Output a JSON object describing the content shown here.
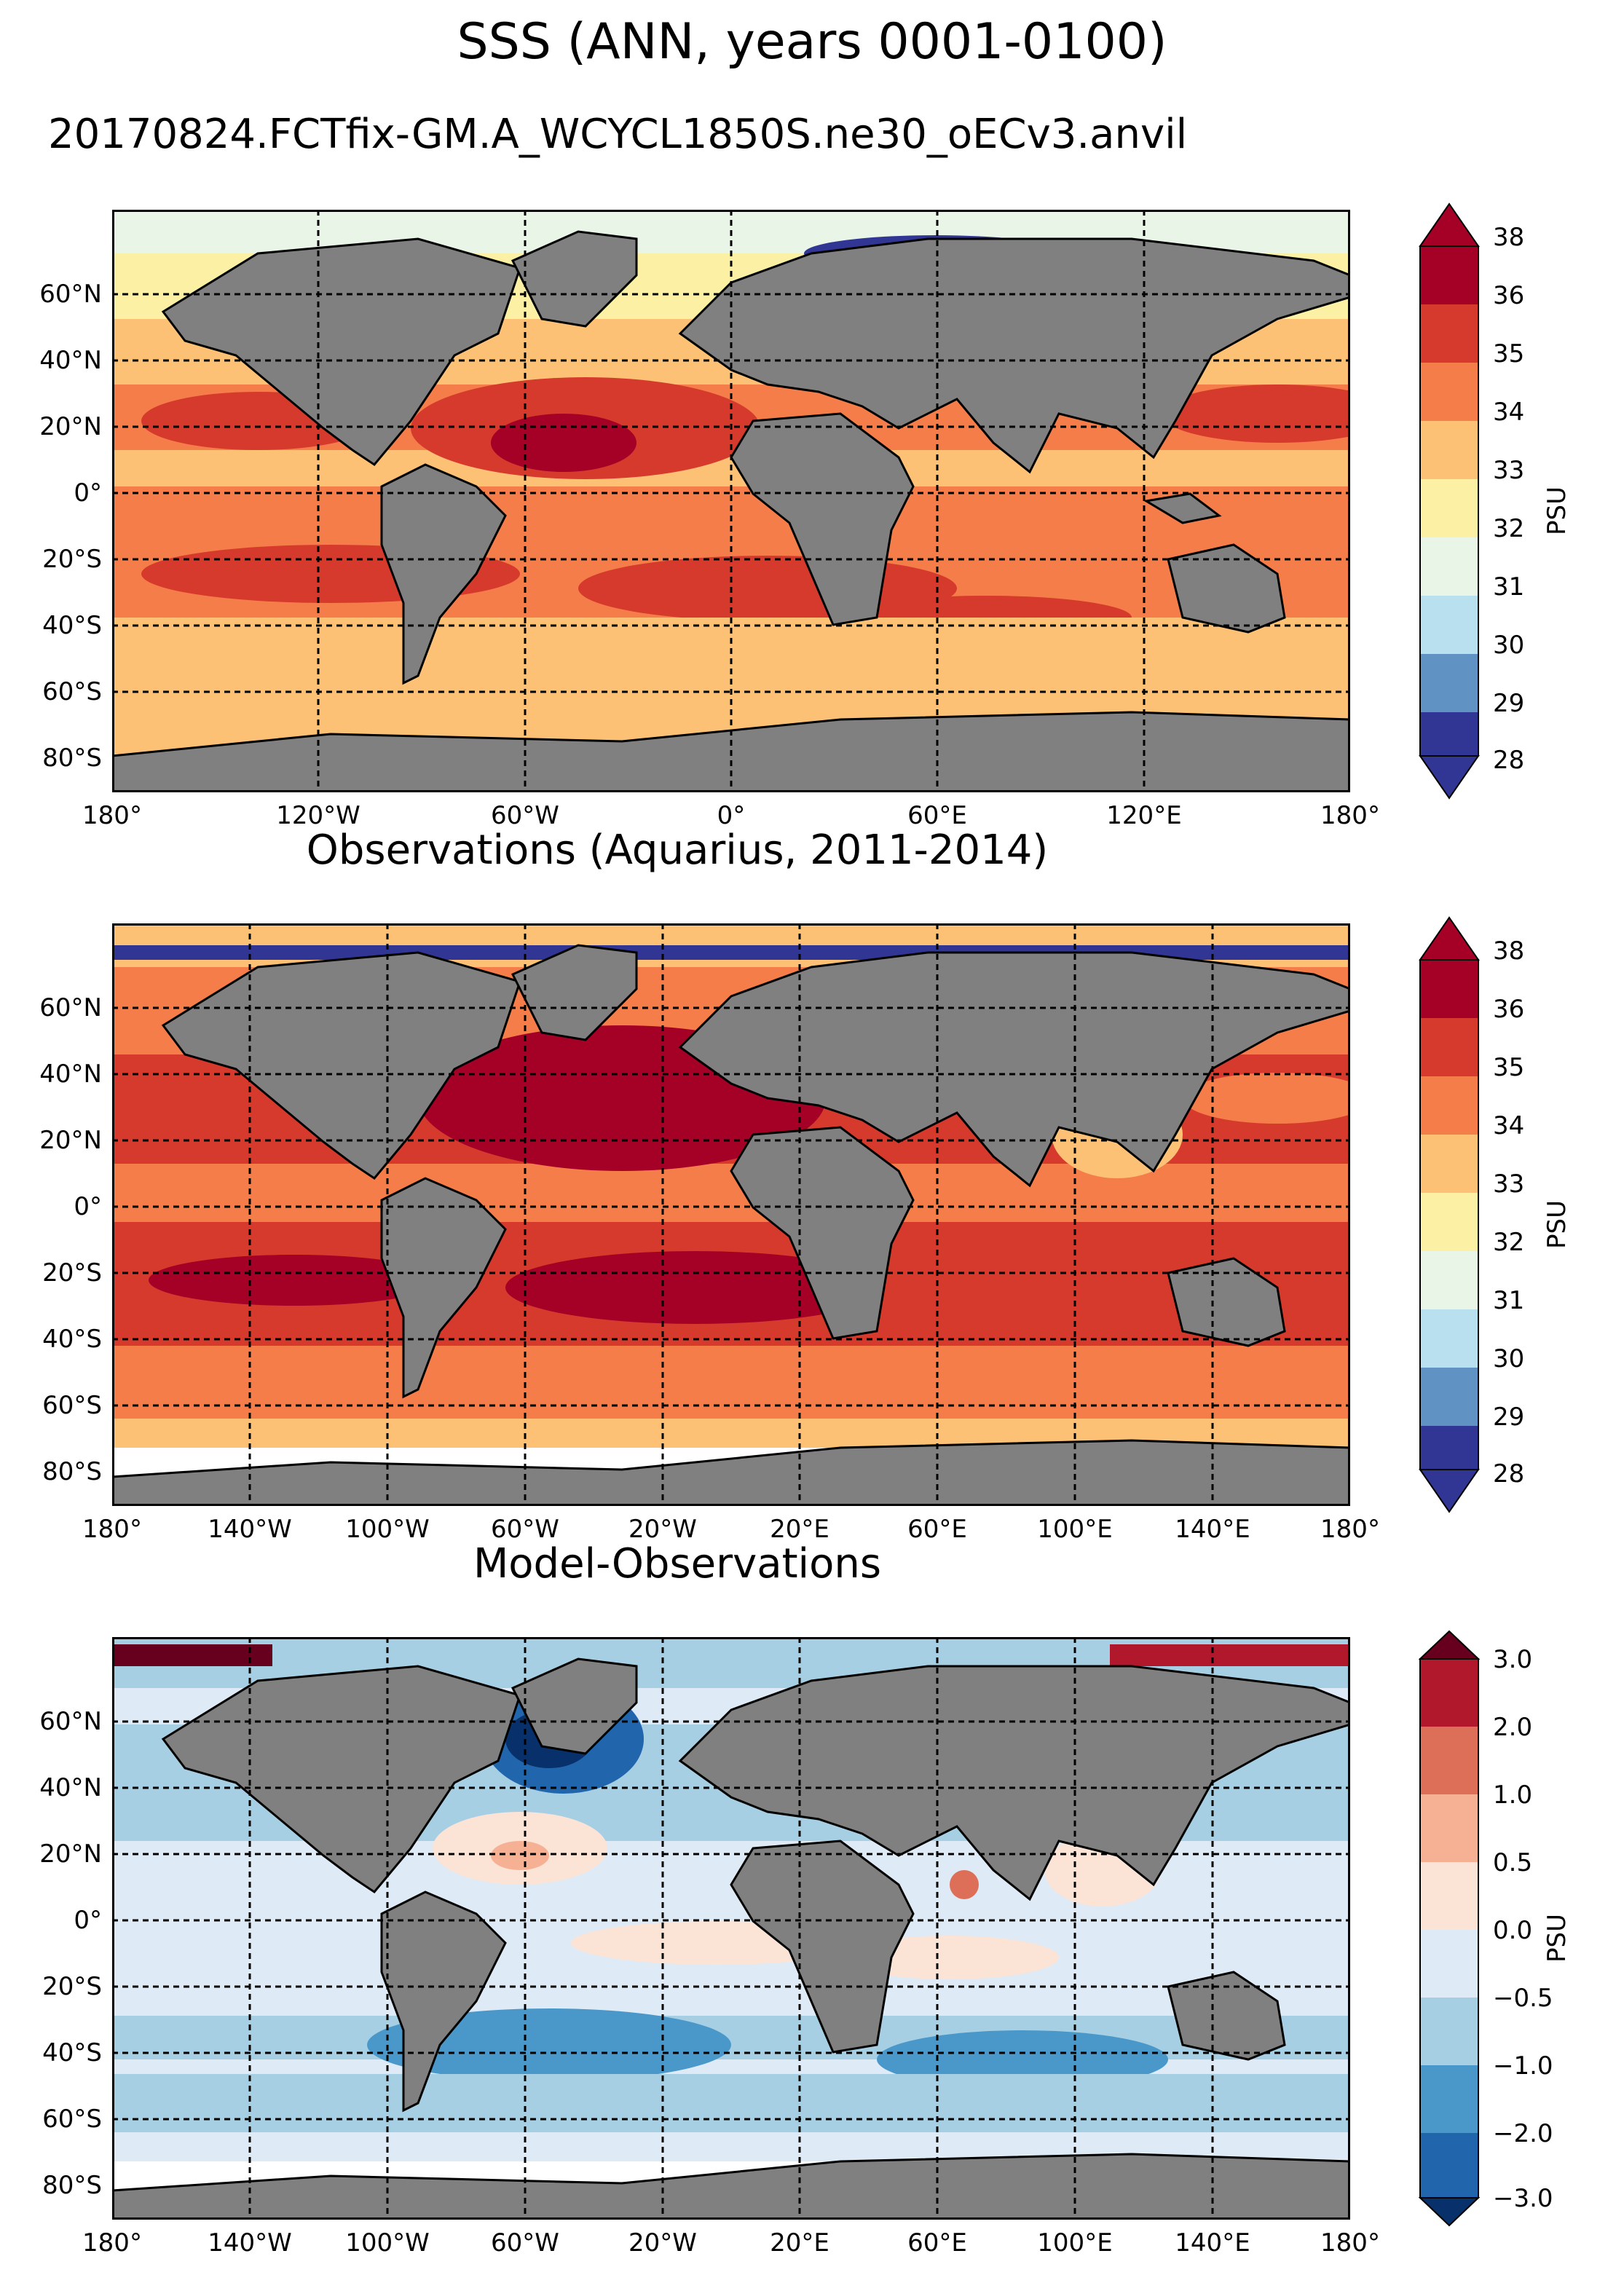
{
  "header": {
    "main_title": "SSS (ANN, years 0001-0100)",
    "subtitle": "20170824.FCTfix-GM.A_WCYCL1850S.ne30_oECv3.anvil"
  },
  "colors": {
    "land": "#808080",
    "no_data": "#ffffff",
    "abs_scale": [
      "#313695",
      "#6092c4",
      "#b8e0ee",
      "#e9f5e7",
      "#fbf0a4",
      "#fdc176",
      "#f57d4a",
      "#d63a2c",
      "#a50026"
    ],
    "diff_scale": [
      "#08306b",
      "#2166ac",
      "#4a98c9",
      "#a7cfe4",
      "#deebf7",
      "#fbe3d6",
      "#f6b093",
      "#dd6f59",
      "#b2182b",
      "#67001f"
    ]
  },
  "panels": [
    {
      "name": "model",
      "title": "",
      "lat_ticks": [
        "60°N",
        "40°N",
        "20°N",
        "0°",
        "20°S",
        "40°S",
        "60°S",
        "80°S"
      ],
      "lon_ticks": [
        "180°",
        "120°W",
        "60°W",
        "0°",
        "60°E",
        "120°E",
        "180°"
      ],
      "colorbar": {
        "label": "PSU",
        "ticks": [
          "38",
          "36",
          "35",
          "34",
          "33",
          "32",
          "31",
          "30",
          "29",
          "28"
        ]
      }
    },
    {
      "name": "observations",
      "title": "Observations (Aquarius, 2011-2014)",
      "lat_ticks": [
        "60°N",
        "40°N",
        "20°N",
        "0°",
        "20°S",
        "40°S",
        "60°S",
        "80°S"
      ],
      "lon_ticks": [
        "180°",
        "140°W",
        "100°W",
        "60°W",
        "20°W",
        "20°E",
        "60°E",
        "100°E",
        "140°E",
        "180°"
      ],
      "colorbar": {
        "label": "PSU",
        "ticks": [
          "38",
          "36",
          "35",
          "34",
          "33",
          "32",
          "31",
          "30",
          "29",
          "28"
        ]
      }
    },
    {
      "name": "difference",
      "title": "Model-Observations",
      "lat_ticks": [
        "60°N",
        "40°N",
        "20°N",
        "0°",
        "20°S",
        "40°S",
        "60°S",
        "80°S"
      ],
      "lon_ticks": [
        "180°",
        "140°W",
        "100°W",
        "60°W",
        "20°W",
        "20°E",
        "60°E",
        "100°E",
        "140°E",
        "180°"
      ],
      "colorbar": {
        "label": "PSU",
        "ticks": [
          "3.0",
          "2.0",
          "1.0",
          "0.5",
          "0.0",
          "−0.5",
          "−1.0",
          "−2.0",
          "−3.0"
        ]
      }
    }
  ]
}
